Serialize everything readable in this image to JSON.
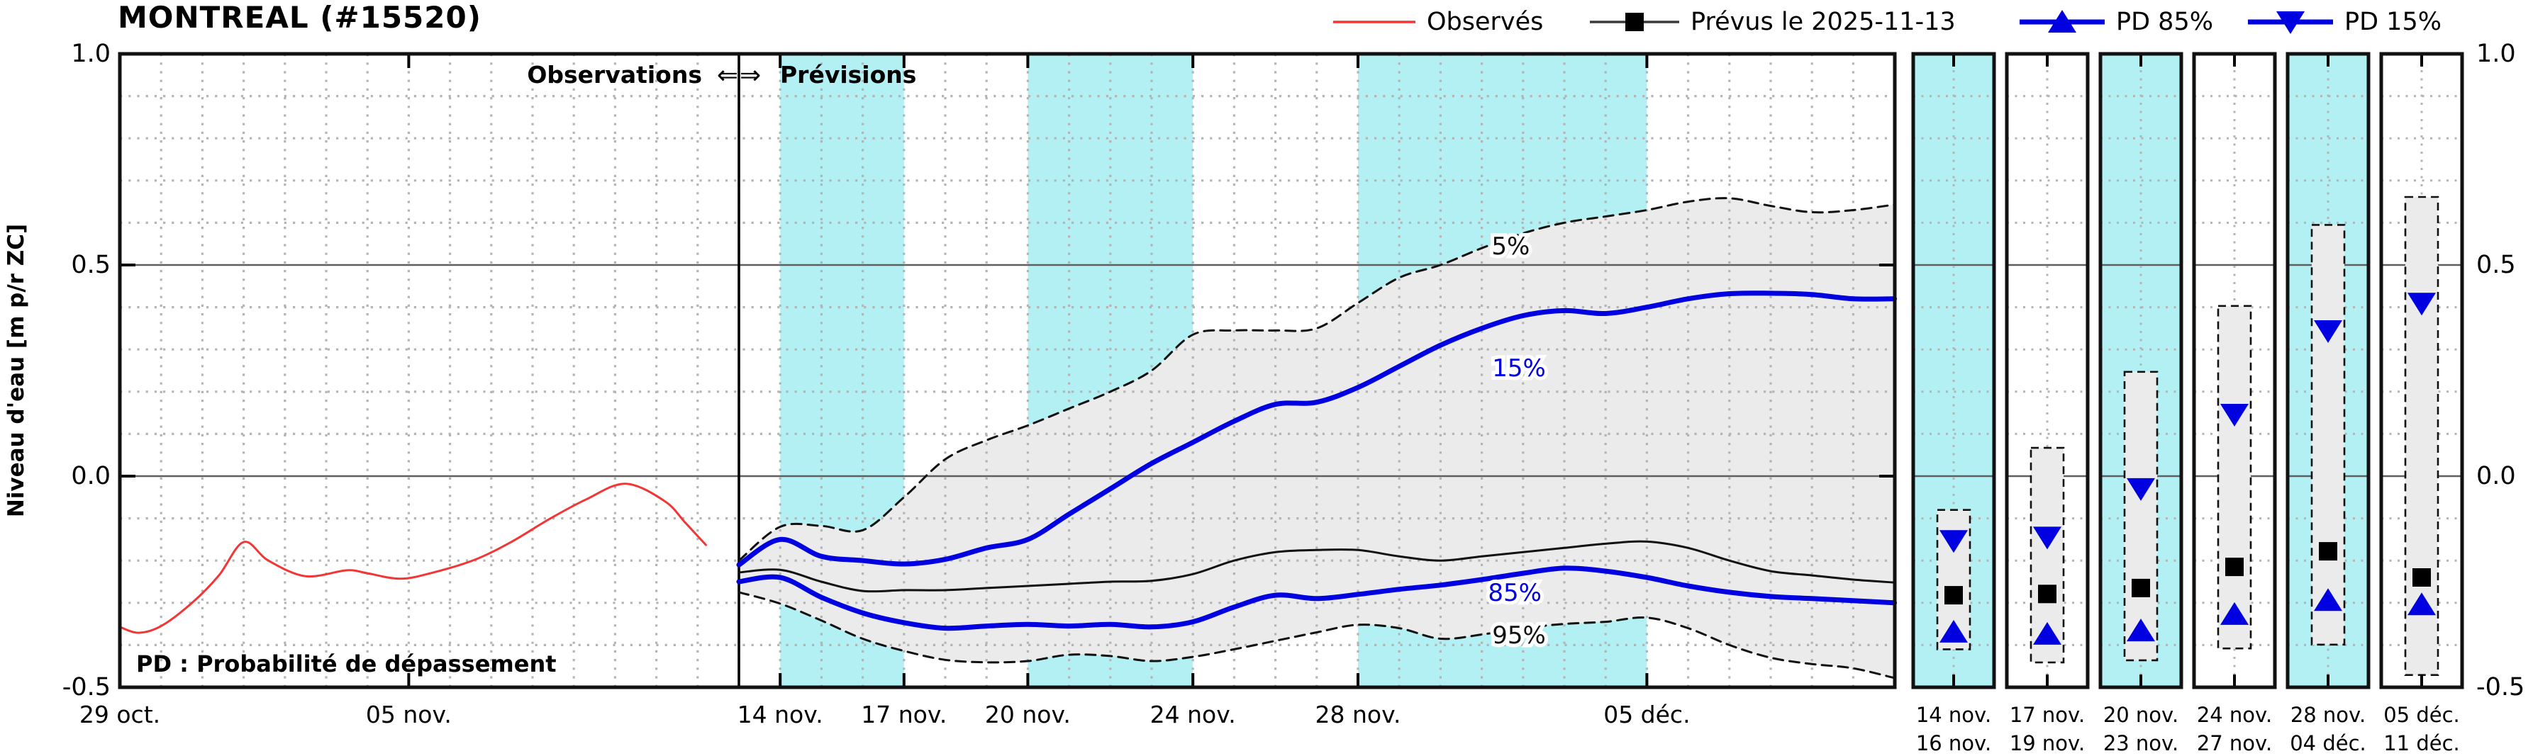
{
  "title": "MONTREAL (#15520)",
  "annotations": {
    "observations": "Observations",
    "arrows": "⇐⇒",
    "previsions": "Prévisions",
    "pd_note": "PD : Probabilité de dépassement"
  },
  "legend": [
    {
      "label": "Observés",
      "marker": "line",
      "color": "#f23535"
    },
    {
      "label": "Prévus le 2025-11-13",
      "marker": "square",
      "color": "#3a3a3a"
    },
    {
      "label": "PD 85%",
      "marker": "triangle-up",
      "color": "#0000e0"
    },
    {
      "label": "PD 15%",
      "marker": "triangle-down",
      "color": "#0000e0"
    }
  ],
  "y_axis": {
    "label": "Niveau d'eau [m p/r ZC]",
    "ticks": [
      "1.0",
      "0.5",
      "0.0",
      "-0.5"
    ],
    "tick_values": [
      1.0,
      0.5,
      0.0,
      -0.5
    ],
    "min": -0.5,
    "max": 1.0,
    "major_gridlines": [
      0.5,
      0.0
    ],
    "minor_step": 0.1
  },
  "x_axis": {
    "unit": "days since 29 oct.",
    "ticks": [
      {
        "label": "29 oct.",
        "day": 0
      },
      {
        "label": "05 nov.",
        "day": 7
      },
      {
        "label": "14 nov.",
        "day": 16
      },
      {
        "label": "17 nov.",
        "day": 19
      },
      {
        "label": "20 nov.",
        "day": 22
      },
      {
        "label": "24 nov.",
        "day": 26
      },
      {
        "label": "28 nov.",
        "day": 30
      },
      {
        "label": "05 déc.",
        "day": 37
      }
    ],
    "total_days": 43,
    "separator_day": 15,
    "highlight_bands_days": [
      [
        16,
        19
      ],
      [
        22,
        26
      ],
      [
        30,
        37
      ]
    ]
  },
  "inline_labels": [
    {
      "text": "5%",
      "day": 33.7,
      "value": 0.545,
      "color": "#111111"
    },
    {
      "text": "15%",
      "day": 33.9,
      "value": 0.257,
      "color": "#0000e0"
    },
    {
      "text": "85%",
      "day": 33.8,
      "value": -0.275,
      "color": "#0000e0"
    },
    {
      "text": "95%",
      "day": 33.9,
      "value": -0.376,
      "color": "#111111"
    }
  ],
  "chart_data": {
    "type": "line",
    "title": "MONTREAL (#15520)",
    "ylabel": "Niveau d'eau [m p/r ZC]",
    "ylim": [
      -0.5,
      1.0
    ],
    "x_unit": "days since 29 oct. 2025 (separator = 13 nov., forecast issued 2025-11-13)",
    "grid": true,
    "legend_position": "top-right",
    "series": [
      {
        "name": "Observés",
        "role": "observed",
        "style": "solid",
        "color": "#f23535",
        "width": 3,
        "points": [
          [
            0,
            -0.357
          ],
          [
            0.45,
            -0.371
          ],
          [
            1,
            -0.355
          ],
          [
            1.75,
            -0.3
          ],
          [
            2.4,
            -0.235
          ],
          [
            3,
            -0.156
          ],
          [
            3.6,
            -0.2
          ],
          [
            4.5,
            -0.237
          ],
          [
            5.5,
            -0.223
          ],
          [
            6,
            -0.23
          ],
          [
            6.8,
            -0.243
          ],
          [
            7.6,
            -0.228
          ],
          [
            8.6,
            -0.198
          ],
          [
            9.5,
            -0.155
          ],
          [
            10.4,
            -0.102
          ],
          [
            11.3,
            -0.055
          ],
          [
            12.25,
            -0.018
          ],
          [
            13.2,
            -0.059
          ],
          [
            13.7,
            -0.11
          ],
          [
            14.2,
            -0.163
          ]
        ]
      },
      {
        "name": "PD 5%",
        "role": "quantile-upper",
        "style": "dashed",
        "color": "#111111",
        "width": 3,
        "points": [
          [
            15,
            -0.2
          ],
          [
            16,
            -0.12
          ],
          [
            17,
            -0.118
          ],
          [
            18,
            -0.128
          ],
          [
            19,
            -0.05
          ],
          [
            20,
            0.04
          ],
          [
            21,
            0.085
          ],
          [
            22,
            0.12
          ],
          [
            23,
            0.16
          ],
          [
            24,
            0.2
          ],
          [
            25,
            0.25
          ],
          [
            26,
            0.335
          ],
          [
            27,
            0.345
          ],
          [
            28,
            0.345
          ],
          [
            29,
            0.35
          ],
          [
            30,
            0.41
          ],
          [
            31,
            0.47
          ],
          [
            32,
            0.5
          ],
          [
            33,
            0.54
          ],
          [
            34,
            0.575
          ],
          [
            35,
            0.6
          ],
          [
            36,
            0.615
          ],
          [
            37,
            0.63
          ],
          [
            38,
            0.65
          ],
          [
            39,
            0.658
          ],
          [
            40,
            0.64
          ],
          [
            41,
            0.625
          ],
          [
            42,
            0.63
          ],
          [
            43,
            0.643
          ]
        ]
      },
      {
        "name": "PD 15%",
        "role": "quantile",
        "style": "solid",
        "color": "#0000e0",
        "width": 7,
        "points": [
          [
            15,
            -0.21
          ],
          [
            16,
            -0.15
          ],
          [
            17,
            -0.19
          ],
          [
            18,
            -0.2
          ],
          [
            19,
            -0.208
          ],
          [
            20,
            -0.197
          ],
          [
            21,
            -0.17
          ],
          [
            22,
            -0.15
          ],
          [
            23,
            -0.09
          ],
          [
            24,
            -0.03
          ],
          [
            25,
            0.03
          ],
          [
            26,
            0.08
          ],
          [
            27,
            0.13
          ],
          [
            28,
            0.17
          ],
          [
            29,
            0.175
          ],
          [
            30,
            0.21
          ],
          [
            31,
            0.26
          ],
          [
            32,
            0.31
          ],
          [
            33,
            0.35
          ],
          [
            34,
            0.38
          ],
          [
            35,
            0.392
          ],
          [
            36,
            0.385
          ],
          [
            37,
            0.4
          ],
          [
            38,
            0.42
          ],
          [
            39,
            0.432
          ],
          [
            40,
            0.433
          ],
          [
            41,
            0.43
          ],
          [
            42,
            0.42
          ],
          [
            43,
            0.42
          ]
        ]
      },
      {
        "name": "Prévus (médiane)",
        "role": "forecast-median",
        "style": "solid",
        "color": "#111111",
        "width": 3,
        "points": [
          [
            15,
            -0.228
          ],
          [
            16,
            -0.222
          ],
          [
            17,
            -0.25
          ],
          [
            18,
            -0.272
          ],
          [
            19,
            -0.27
          ],
          [
            20,
            -0.27
          ],
          [
            21,
            -0.265
          ],
          [
            22,
            -0.26
          ],
          [
            23,
            -0.255
          ],
          [
            24,
            -0.25
          ],
          [
            25,
            -0.248
          ],
          [
            26,
            -0.232
          ],
          [
            27,
            -0.2
          ],
          [
            28,
            -0.18
          ],
          [
            29,
            -0.175
          ],
          [
            30,
            -0.175
          ],
          [
            31,
            -0.19
          ],
          [
            32,
            -0.2
          ],
          [
            33,
            -0.19
          ],
          [
            34,
            -0.18
          ],
          [
            35,
            -0.17
          ],
          [
            36,
            -0.16
          ],
          [
            37,
            -0.155
          ],
          [
            38,
            -0.17
          ],
          [
            39,
            -0.2
          ],
          [
            40,
            -0.225
          ],
          [
            41,
            -0.235
          ],
          [
            42,
            -0.245
          ],
          [
            43,
            -0.252
          ]
        ]
      },
      {
        "name": "PD 85%",
        "role": "quantile",
        "style": "solid",
        "color": "#0000e0",
        "width": 7,
        "points": [
          [
            15,
            -0.25
          ],
          [
            16,
            -0.24
          ],
          [
            17,
            -0.287
          ],
          [
            18,
            -0.324
          ],
          [
            19,
            -0.347
          ],
          [
            20,
            -0.36
          ],
          [
            21,
            -0.355
          ],
          [
            22,
            -0.351
          ],
          [
            23,
            -0.355
          ],
          [
            24,
            -0.351
          ],
          [
            25,
            -0.357
          ],
          [
            26,
            -0.345
          ],
          [
            27,
            -0.31
          ],
          [
            28,
            -0.282
          ],
          [
            29,
            -0.29
          ],
          [
            30,
            -0.28
          ],
          [
            31,
            -0.268
          ],
          [
            32,
            -0.258
          ],
          [
            33,
            -0.245
          ],
          [
            34,
            -0.23
          ],
          [
            35,
            -0.218
          ],
          [
            36,
            -0.225
          ],
          [
            37,
            -0.24
          ],
          [
            38,
            -0.26
          ],
          [
            39,
            -0.275
          ],
          [
            40,
            -0.285
          ],
          [
            41,
            -0.29
          ],
          [
            42,
            -0.295
          ],
          [
            43,
            -0.3
          ]
        ]
      },
      {
        "name": "PD 95%",
        "role": "quantile-lower",
        "style": "dashed",
        "color": "#111111",
        "width": 3,
        "points": [
          [
            15,
            -0.275
          ],
          [
            16,
            -0.302
          ],
          [
            17,
            -0.342
          ],
          [
            18,
            -0.385
          ],
          [
            19,
            -0.414
          ],
          [
            20,
            -0.435
          ],
          [
            21,
            -0.441
          ],
          [
            22,
            -0.438
          ],
          [
            23,
            -0.423
          ],
          [
            24,
            -0.426
          ],
          [
            25,
            -0.438
          ],
          [
            26,
            -0.428
          ],
          [
            27,
            -0.41
          ],
          [
            28,
            -0.39
          ],
          [
            29,
            -0.37
          ],
          [
            30,
            -0.352
          ],
          [
            31,
            -0.36
          ],
          [
            32,
            -0.385
          ],
          [
            33,
            -0.375
          ],
          [
            34,
            -0.36
          ],
          [
            35,
            -0.35
          ],
          [
            36,
            -0.345
          ],
          [
            37,
            -0.335
          ],
          [
            38,
            -0.36
          ],
          [
            39,
            -0.4
          ],
          [
            40,
            -0.43
          ],
          [
            41,
            -0.445
          ],
          [
            42,
            -0.455
          ],
          [
            43,
            -0.478
          ]
        ],
        "band_fill_between": "PD 5%",
        "band_color": "#ebebeb"
      }
    ]
  },
  "panels": [
    {
      "period_start": "14 nov.",
      "period_end": "16 nov.",
      "days": [
        16,
        18
      ],
      "highlight": true,
      "p5": -0.08,
      "p95": -0.41,
      "pd15": -0.153,
      "median": -0.282,
      "pd85": -0.369
    },
    {
      "period_start": "17 nov.",
      "period_end": "19 nov.",
      "days": [
        19,
        21
      ],
      "highlight": false,
      "p5": 0.067,
      "p95": -0.441,
      "pd15": -0.145,
      "median": -0.279,
      "pd85": -0.374
    },
    {
      "period_start": "20 nov.",
      "period_end": "23 nov.",
      "days": [
        22,
        25
      ],
      "highlight": true,
      "p5": 0.247,
      "p95": -0.436,
      "pd15": -0.03,
      "median": -0.265,
      "pd85": -0.366
    },
    {
      "period_start": "24 nov.",
      "period_end": "27 nov.",
      "days": [
        26,
        29
      ],
      "highlight": false,
      "p5": 0.403,
      "p95": -0.408,
      "pd15": 0.146,
      "median": -0.215,
      "pd85": -0.327
    },
    {
      "period_start": "28 nov.",
      "period_end": "04 déc.",
      "days": [
        30,
        36
      ],
      "highlight": true,
      "p5": 0.595,
      "p95": -0.399,
      "pd15": 0.344,
      "median": -0.178,
      "pd85": -0.294
    },
    {
      "period_start": "05 déc.",
      "period_end": "11 déc.",
      "days": [
        37,
        43
      ],
      "highlight": false,
      "p5": 0.661,
      "p95": -0.471,
      "pd15": 0.409,
      "median": -0.24,
      "pd85": -0.304
    }
  ],
  "colors": {
    "observed": "#f23535",
    "quantile_blue": "#0000e0",
    "black_line": "#111111",
    "highlight_cyan": "#b2f0f4",
    "uncertainty_gray": "#ebebeb",
    "grid_dot": "#b4b4b4",
    "grid_major": "#5f5f5f",
    "frame": "#111111"
  }
}
